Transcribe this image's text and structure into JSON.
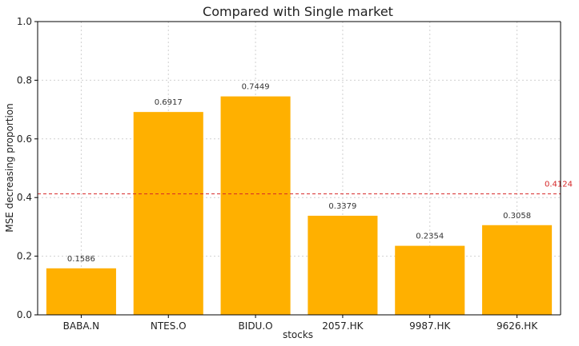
{
  "chart_data": {
    "type": "bar",
    "title": "Compared with Single market",
    "xlabel": "stocks",
    "ylabel": "MSE decreasing proportion",
    "categories": [
      "BABA.N",
      "NTES.O",
      "BIDU.O",
      "2057.HK",
      "9987.HK",
      "9626.HK"
    ],
    "values": [
      0.1586,
      0.6917,
      0.7449,
      0.3379,
      0.2354,
      0.3058
    ],
    "value_labels": [
      "0.1586",
      "0.6917",
      "0.7449",
      "0.3379",
      "0.2354",
      "0.3058"
    ],
    "ylim": [
      0,
      1.0
    ],
    "yticks": [
      0.0,
      0.2,
      0.4,
      0.6,
      0.8,
      1.0
    ],
    "ytick_labels": [
      "0.0",
      "0.2",
      "0.4",
      "0.6",
      "0.8",
      "1.0"
    ],
    "grid": true,
    "reference_line": {
      "value": 0.4124,
      "label": "0.4124",
      "style": "dashed"
    },
    "colors": {
      "bar": "#FFB000",
      "reference": "#D62728"
    }
  }
}
